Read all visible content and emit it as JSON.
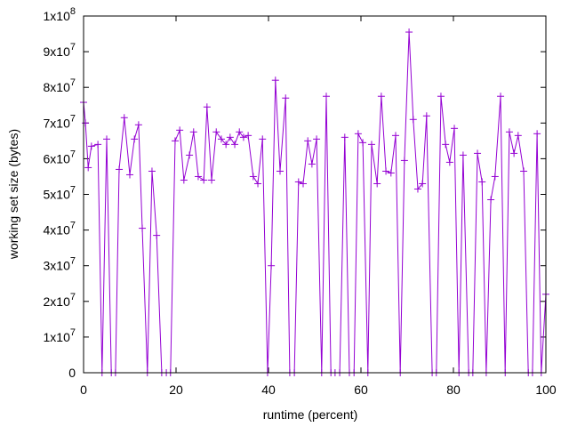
{
  "chart_data": {
    "type": "line",
    "title": "",
    "xlabel": "runtime (percent)",
    "ylabel": "working set size (bytes)",
    "xlim": [
      0,
      100
    ],
    "ylim": [
      0,
      100000000
    ],
    "grid": false,
    "legend": "none",
    "series_color": "#9400d3",
    "x_ticks": [
      {
        "value": 0,
        "label": "0"
      },
      {
        "value": 20,
        "label": "20"
      },
      {
        "value": 40,
        "label": "40"
      },
      {
        "value": 60,
        "label": "60"
      },
      {
        "value": 80,
        "label": "80"
      },
      {
        "value": 100,
        "label": "100"
      }
    ],
    "y_ticks": [
      {
        "value": 0,
        "mant": "0",
        "exp": ""
      },
      {
        "value": 10000000,
        "mant": "1x10",
        "exp": "7"
      },
      {
        "value": 20000000,
        "mant": "2x10",
        "exp": "7"
      },
      {
        "value": 30000000,
        "mant": "3x10",
        "exp": "7"
      },
      {
        "value": 40000000,
        "mant": "4x10",
        "exp": "7"
      },
      {
        "value": 50000000,
        "mant": "5x10",
        "exp": "7"
      },
      {
        "value": 60000000,
        "mant": "6x10",
        "exp": "7"
      },
      {
        "value": 70000000,
        "mant": "7x10",
        "exp": "7"
      },
      {
        "value": 80000000,
        "mant": "8x10",
        "exp": "7"
      },
      {
        "value": 90000000,
        "mant": "9x10",
        "exp": "7"
      },
      {
        "value": 100000000,
        "mant": "1x10",
        "exp": "8"
      }
    ],
    "series": [
      {
        "name": "working set",
        "x": [
          0,
          0.4,
          1.0,
          1.7,
          3.1,
          4.0,
          5.0,
          6.0,
          6.9,
          7.7,
          8.8,
          10.0,
          11.0,
          11.9,
          12.7,
          13.8,
          14.8,
          15.8,
          16.9,
          17.9,
          18.8,
          19.8,
          20.8,
          21.7,
          22.9,
          23.8,
          24.8,
          26.0,
          26.7,
          27.7,
          28.7,
          29.8,
          30.8,
          31.7,
          32.7,
          33.7,
          34.6,
          35.6,
          36.7,
          37.7,
          38.7,
          39.8,
          40.6,
          41.5,
          42.5,
          43.7,
          44.6,
          45.6,
          46.5,
          47.5,
          48.5,
          49.4,
          50.4,
          51.5,
          52.5,
          53.5,
          54.4,
          55.4,
          56.5,
          57.5,
          58.5,
          59.4,
          60.4,
          61.5,
          62.3,
          63.5,
          64.4,
          65.4,
          66.5,
          67.5,
          68.5,
          69.4,
          70.4,
          71.3,
          72.3,
          73.3,
          74.2,
          75.4,
          76.3,
          77.3,
          78.3,
          79.2,
          80.2,
          81.2,
          82.1,
          83.3,
          84.2,
          85.2,
          86.2,
          87.1,
          88.1,
          89.0,
          90.2,
          91.2,
          92.1,
          93.1,
          94.0,
          95.2,
          96.2,
          97.1,
          98.1,
          99.0,
          100
        ],
        "y": [
          75800000.0,
          70000000.0,
          57500000.0,
          63500000.0,
          64000000.0,
          0,
          65500000.0,
          0,
          0,
          57000000.0,
          71500000.0,
          55500000.0,
          65500000.0,
          69500000.0,
          40500000.0,
          0,
          56500000.0,
          38500000.0,
          0,
          0,
          0,
          65000000.0,
          68000000.0,
          54000000.0,
          61000000.0,
          67500000.0,
          55000000.0,
          54000000.0,
          74500000.0,
          54000000.0,
          67500000.0,
          65500000.0,
          64000000.0,
          66000000.0,
          64000000.0,
          67500000.0,
          66000000.0,
          66500000.0,
          55000000.0,
          53000000.0,
          65500000.0,
          0,
          30000000.0,
          82000000.0,
          56500000.0,
          77000000.0,
          0,
          0,
          53500000.0,
          53000000.0,
          65000000.0,
          58500000.0,
          65500000.0,
          0,
          77500000.0,
          0,
          0,
          0,
          66000000.0,
          0,
          0,
          67000000.0,
          64500000.0,
          0,
          64000000.0,
          53000000.0,
          77500000.0,
          56500000.0,
          56000000.0,
          66500000.0,
          0,
          59500000.0,
          95500000.0,
          71000000.0,
          51500000.0,
          53000000.0,
          72000000.0,
          0,
          0,
          77500000.0,
          64000000.0,
          59000000.0,
          68500000.0,
          0,
          61000000.0,
          0,
          0,
          61500000.0,
          53500000.0,
          0,
          48500000.0,
          55000000.0,
          77500000.0,
          0,
          67500000.0,
          61500000.0,
          66500000.0,
          56500000.0,
          0,
          0,
          67000000.0,
          0,
          22000000.0
        ]
      }
    ]
  }
}
